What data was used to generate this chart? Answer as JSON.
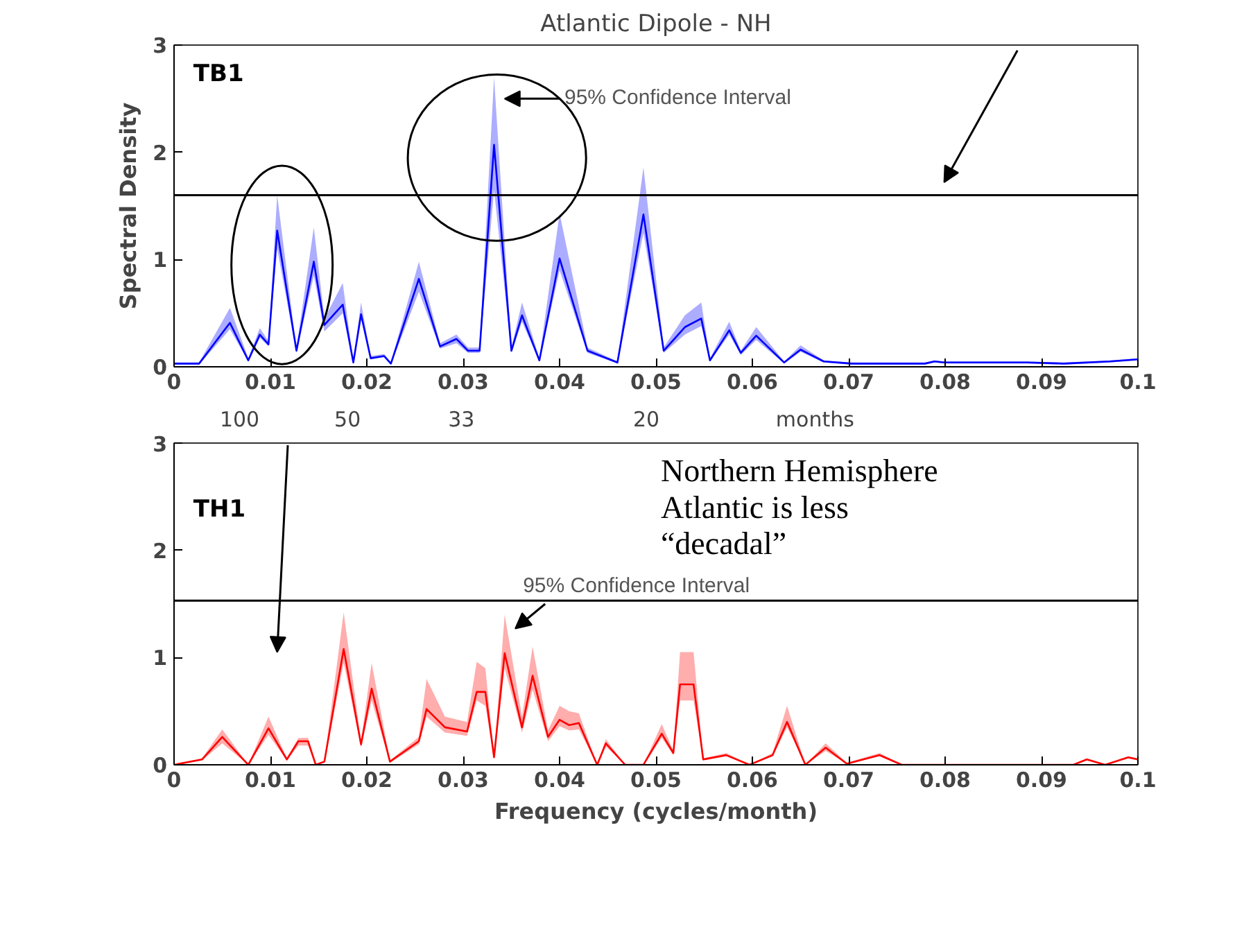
{
  "chart_data": [
    {
      "type": "line",
      "title": "Atlantic Dipole - NH",
      "ylabel": "Spectral Density",
      "xlim": [
        0,
        0.1
      ],
      "xticks": [
        0,
        0.01,
        0.02,
        0.03,
        0.04,
        0.05,
        0.06,
        0.07,
        0.08,
        0.09,
        0.1
      ],
      "ylim": [
        0,
        3
      ],
      "yticks": [
        0,
        1,
        2,
        3
      ],
      "x": [
        0,
        0.0026,
        0.0058,
        0.0077,
        0.0089,
        0.0098,
        0.0107,
        0.0127,
        0.0145,
        0.0156,
        0.0175,
        0.0186,
        0.0194,
        0.0204,
        0.0218,
        0.0225,
        0.0254,
        0.0276,
        0.0293,
        0.0305,
        0.0317,
        0.0332,
        0.035,
        0.0361,
        0.0379,
        0.04,
        0.0429,
        0.046,
        0.0487,
        0.0508,
        0.053,
        0.0547,
        0.0556,
        0.0576,
        0.0588,
        0.0604,
        0.0633,
        0.065,
        0.0674,
        0.0703,
        0.0779,
        0.0789,
        0.0799,
        0.0885,
        0.0923,
        0.0971,
        0.1
      ],
      "series": [
        {
          "color": "#0000ff",
          "values": [
            0.03,
            0.03,
            0.41,
            0.06,
            0.3,
            0.21,
            1.27,
            0.15,
            0.98,
            0.39,
            0.58,
            0.04,
            0.49,
            0.08,
            0.1,
            0.03,
            0.82,
            0.19,
            0.26,
            0.15,
            0.15,
            2.07,
            0.15,
            0.48,
            0.06,
            1.01,
            0.15,
            0.04,
            1.42,
            0.15,
            0.37,
            0.45,
            0.06,
            0.34,
            0.13,
            0.29,
            0.04,
            0.16,
            0.05,
            0.03,
            0.03,
            0.05,
            0.04,
            0.04,
            0.03,
            0.05,
            0.07
          ],
          "lower": [
            0.02,
            0.02,
            0.35,
            0.05,
            0.27,
            0.19,
            1.1,
            0.13,
            0.85,
            0.33,
            0.5,
            0.03,
            0.45,
            0.07,
            0.09,
            0.02,
            0.7,
            0.17,
            0.22,
            0.13,
            0.13,
            1.65,
            0.13,
            0.42,
            0.05,
            0.9,
            0.13,
            0.03,
            1.25,
            0.13,
            0.3,
            0.38,
            0.05,
            0.3,
            0.11,
            0.25,
            0.03,
            0.14,
            0.04,
            0.02,
            0.02,
            0.04,
            0.03,
            0.03,
            0.02,
            0.04,
            0.06
          ],
          "upper": [
            0.04,
            0.04,
            0.55,
            0.08,
            0.36,
            0.24,
            1.6,
            0.17,
            1.3,
            0.45,
            0.78,
            0.05,
            0.6,
            0.1,
            0.12,
            0.04,
            0.98,
            0.22,
            0.3,
            0.18,
            0.18,
            2.7,
            0.18,
            0.6,
            0.08,
            1.43,
            0.18,
            0.05,
            1.86,
            0.18,
            0.48,
            0.6,
            0.08,
            0.42,
            0.15,
            0.37,
            0.05,
            0.2,
            0.06,
            0.04,
            0.04,
            0.06,
            0.05,
            0.05,
            0.04,
            0.06,
            0.08
          ]
        }
      ],
      "ref_lines": [
        {
          "axis": "y",
          "value": 1.6,
          "color": "#000000"
        }
      ],
      "annotations": [
        "TB1",
        "95% Confidence Interval",
        "100",
        "50",
        "33",
        "20",
        "months"
      ]
    },
    {
      "type": "line",
      "xlabel": "Frequency (cycles/month)",
      "xlim": [
        0,
        0.1
      ],
      "xticks": [
        0,
        0.01,
        0.02,
        0.03,
        0.04,
        0.05,
        0.06,
        0.07,
        0.08,
        0.09,
        0.1
      ],
      "ylim": [
        0,
        3
      ],
      "yticks": [
        0,
        1,
        2,
        3
      ],
      "x": [
        0,
        0.0029,
        0.005,
        0.0077,
        0.0098,
        0.0117,
        0.0129,
        0.0139,
        0.0147,
        0.0156,
        0.0176,
        0.0194,
        0.0205,
        0.0224,
        0.0254,
        0.0262,
        0.0281,
        0.0304,
        0.0314,
        0.0323,
        0.0332,
        0.0343,
        0.0361,
        0.0372,
        0.0388,
        0.04,
        0.041,
        0.042,
        0.0439,
        0.0448,
        0.0468,
        0.0487,
        0.0506,
        0.0518,
        0.0525,
        0.0539,
        0.0549,
        0.0573,
        0.0597,
        0.0621,
        0.0636,
        0.0655,
        0.0676,
        0.0698,
        0.0732,
        0.0755,
        0.0933,
        0.0947,
        0.0966,
        0.099,
        0.1
      ],
      "series": [
        {
          "color": "#ff0000",
          "values": [
            0,
            0.05,
            0.26,
            0,
            0.34,
            0.05,
            0.22,
            0.22,
            0,
            0.03,
            1.08,
            0.19,
            0.71,
            0.03,
            0.22,
            0.52,
            0.35,
            0.31,
            0.68,
            0.68,
            0.07,
            1.04,
            0.35,
            0.83,
            0.26,
            0.42,
            0.37,
            0.39,
            0,
            0.2,
            0,
            0,
            0.29,
            0.11,
            0.75,
            0.75,
            0.05,
            0.09,
            0,
            0.09,
            0.4,
            0,
            0.16,
            0.01,
            0.09,
            0,
            0,
            0.05,
            0,
            0.07,
            0.05
          ],
          "lower": [
            0,
            0.04,
            0.2,
            0,
            0.28,
            0.04,
            0.18,
            0.18,
            0,
            0.02,
            0.95,
            0.16,
            0.6,
            0.02,
            0.19,
            0.45,
            0.3,
            0.27,
            0.6,
            0.55,
            0.06,
            0.9,
            0.3,
            0.7,
            0.22,
            0.36,
            0.32,
            0.33,
            0,
            0.17,
            0,
            0,
            0.25,
            0.09,
            0.6,
            0.6,
            0.04,
            0.08,
            0,
            0.08,
            0.35,
            0,
            0.13,
            0.01,
            0.08,
            0,
            0,
            0.04,
            0,
            0.06,
            0.04
          ],
          "upper": [
            0,
            0.06,
            0.33,
            0,
            0.45,
            0.06,
            0.25,
            0.25,
            0,
            0.04,
            1.42,
            0.22,
            0.95,
            0.04,
            0.26,
            0.8,
            0.45,
            0.4,
            0.96,
            0.9,
            0.08,
            1.4,
            0.45,
            1.1,
            0.32,
            0.55,
            0.5,
            0.48,
            0,
            0.24,
            0,
            0,
            0.38,
            0.13,
            1.05,
            1.05,
            0.06,
            0.11,
            0,
            0.11,
            0.55,
            0,
            0.2,
            0.02,
            0.11,
            0,
            0,
            0.06,
            0,
            0.08,
            0.06
          ]
        }
      ],
      "ref_lines": [
        {
          "axis": "y",
          "value": 1.53,
          "color": "#000000"
        }
      ],
      "annotations": [
        "TH1",
        "95% Confidence Interval",
        "Northern Hemisphere\nAtlantic is less\n“decadal”"
      ]
    }
  ]
}
